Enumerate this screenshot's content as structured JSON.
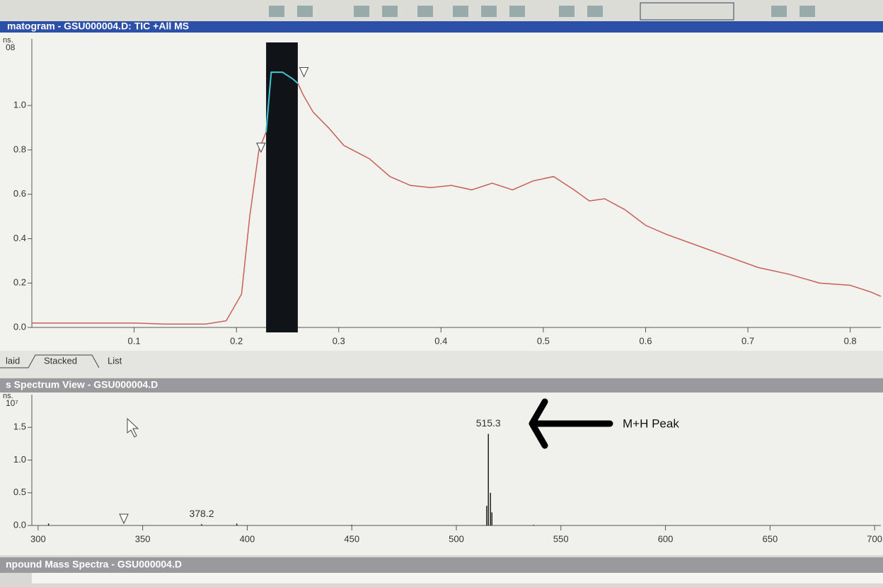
{
  "windows": [
    {
      "title": "matogram - GSU000004.D: TIC +All MS"
    },
    {
      "title": "s Spectrum View - GSU000004.D"
    },
    {
      "title": "npound Mass Spectra - GSU000004.D"
    }
  ],
  "tabs": [
    "laid",
    "Stacked",
    "List"
  ],
  "chart_data": [
    {
      "type": "line",
      "y_unit_label": "ns.",
      "y_exponent": "08",
      "x": [
        0.0,
        0.05,
        0.1,
        0.13,
        0.17,
        0.19,
        0.205,
        0.213,
        0.222,
        0.229,
        0.234,
        0.245,
        0.255,
        0.26,
        0.265,
        0.275,
        0.29,
        0.305,
        0.33,
        0.35,
        0.37,
        0.39,
        0.41,
        0.43,
        0.45,
        0.47,
        0.49,
        0.51,
        0.53,
        0.545,
        0.56,
        0.58,
        0.6,
        0.62,
        0.65,
        0.68,
        0.71,
        0.74,
        0.77,
        0.8,
        0.82,
        0.83
      ],
      "values": [
        0.02,
        0.02,
        0.02,
        0.015,
        0.015,
        0.03,
        0.15,
        0.5,
        0.8,
        0.88,
        1.15,
        1.15,
        1.12,
        1.1,
        1.05,
        0.97,
        0.9,
        0.82,
        0.76,
        0.68,
        0.64,
        0.63,
        0.64,
        0.62,
        0.65,
        0.62,
        0.66,
        0.68,
        0.62,
        0.57,
        0.58,
        0.53,
        0.46,
        0.42,
        0.37,
        0.32,
        0.27,
        0.24,
        0.2,
        0.19,
        0.16,
        0.14
      ],
      "color": "#c8605a",
      "highlight_color": "#3cc8d8",
      "selection_band": [
        0.229,
        0.26
      ],
      "markers": {
        "x": [
          0.224,
          0.266
        ],
        "values": [
          0.78,
          1.12
        ]
      },
      "xlim": [
        0.0,
        0.83
      ],
      "ylim": [
        0,
        1.3
      ],
      "xticks": [
        0.1,
        0.2,
        0.3,
        0.4,
        0.5,
        0.6,
        0.7,
        0.8
      ],
      "yticks": [
        {
          "value": 0,
          "label": "0.0"
        },
        0.2,
        0.4,
        0.6,
        0.8,
        {
          "value": 1,
          "label": "1.0"
        }
      ]
    },
    {
      "type": "stem",
      "y_unit_label": "ns.",
      "y_exponent": "10⁷",
      "x": [
        305,
        340,
        378.2,
        395,
        450,
        514.5,
        515.3,
        516.3,
        517,
        537
      ],
      "values": [
        0.03,
        0.005,
        0.02,
        0.03,
        0.01,
        0.3,
        1.4,
        0.5,
        0.2,
        0.01
      ],
      "peak_labels": [
        378.2,
        515.3
      ],
      "color": "#222222",
      "markers": {
        "x": [
          341
        ],
        "values": [
          0
        ]
      },
      "annotation": "M+H Peak",
      "xlim": [
        297,
        703
      ],
      "ylim": [
        0,
        2.0
      ],
      "xticks": [
        300,
        350,
        400,
        450,
        500,
        550,
        600,
        650,
        700
      ],
      "yticks": [
        {
          "value": 0,
          "label": "0.0"
        },
        0.5,
        {
          "value": 1,
          "label": "1.0"
        },
        1.5
      ]
    }
  ]
}
